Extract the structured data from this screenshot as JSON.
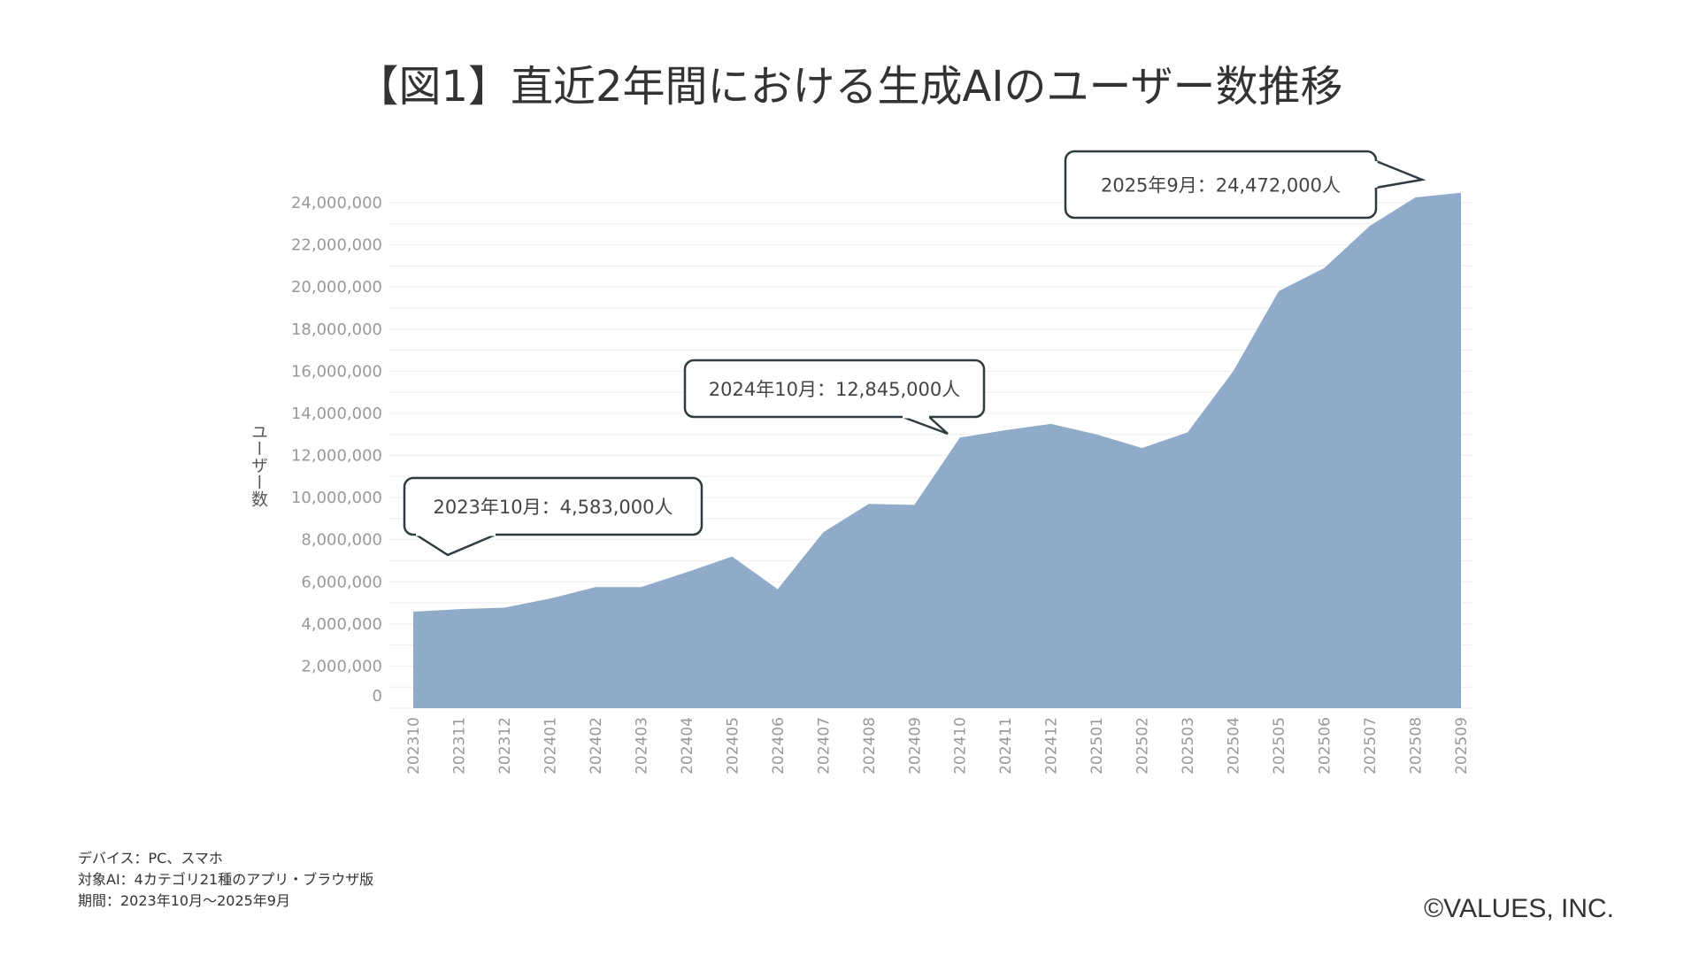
{
  "title": "【図1】直近2年間における生成AIのユーザー数推移",
  "footer": {
    "device": "デバイス：PC、スマホ",
    "target": "対象AI：4カテゴリ21種のアプリ・ブラウザ版",
    "period": "期間：2023年10月〜2025年9月"
  },
  "copyright": "©VALUES, INC.",
  "colors": {
    "area": "#8fabc9",
    "grid": "#eeeeee",
    "tick": "#999999",
    "callout_border": "#2f3b3f"
  },
  "chart_data": {
    "type": "area",
    "title": "【図1】直近2年間における生成AIのユーザー数推移",
    "xlabel": "",
    "ylabel": "ユーザー数",
    "ylim": [
      0,
      24000000
    ],
    "grid": true,
    "categories": [
      "202310",
      "202311",
      "202312",
      "202401",
      "202402",
      "202403",
      "202404",
      "202405",
      "202406",
      "202407",
      "202408",
      "202409",
      "202410",
      "202411",
      "202412",
      "202501",
      "202502",
      "202503",
      "202504",
      "202505",
      "202506",
      "202507",
      "202508",
      "202509"
    ],
    "values": [
      4583000,
      4700000,
      4770000,
      5200000,
      5750000,
      5750000,
      6450000,
      7200000,
      5650000,
      8350000,
      9700000,
      9650000,
      12845000,
      13200000,
      13500000,
      13000000,
      12350000,
      13100000,
      16000000,
      19800000,
      20900000,
      22900000,
      24250000,
      24472000
    ],
    "yticks": [
      "0",
      "2,000,000",
      "4,000,000",
      "6,000,000",
      "8,000,000",
      "10,000,000",
      "12,000,000",
      "14,000,000",
      "16,000,000",
      "18,000,000",
      "20,000,000",
      "22,000,000",
      "24,000,000"
    ],
    "annotations": [
      {
        "text": "2023年10月：4,583,000人",
        "category": "202310"
      },
      {
        "text": "2024年10月：12,845,000人",
        "category": "202410"
      },
      {
        "text": "2025年9月：24,472,000人",
        "category": "202509"
      }
    ]
  }
}
